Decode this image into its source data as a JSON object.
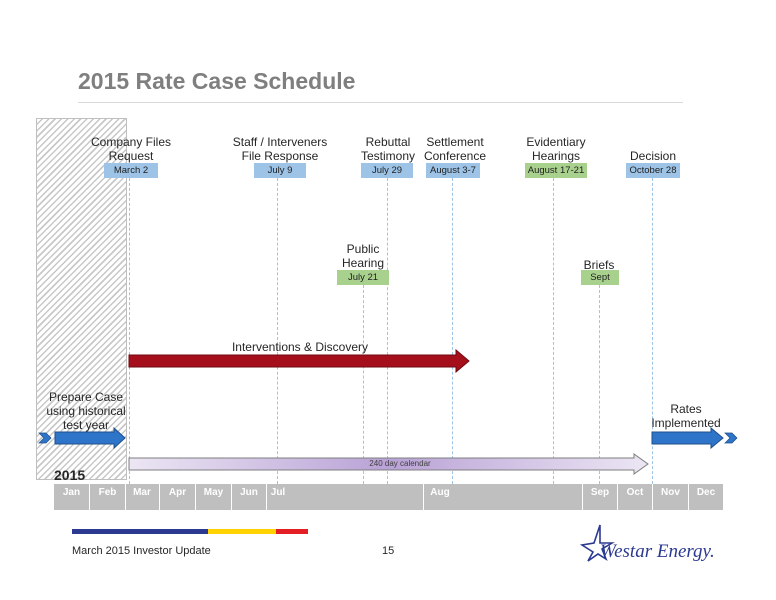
{
  "title": "2015 Rate Case Schedule",
  "milestones": [
    {
      "label": "Company Files Request",
      "line1": "Company Files",
      "line2": "Request",
      "date": "March 2"
    },
    {
      "label": "Staff / Interveners File Response",
      "line1": "Staff / Interveners",
      "line2": "File Response",
      "date": "July 9"
    },
    {
      "label": "Rebuttal Testimony",
      "line1": "Rebuttal",
      "line2": "Testimony",
      "date": "July 29"
    },
    {
      "label": "Settlement Conference",
      "line1": "Settlement",
      "line2": "Conference",
      "date": "August 3-7"
    },
    {
      "label": "Evidentiary Hearings",
      "line1": "Evidentiary",
      "line2": "Hearings",
      "date": "August 17-21"
    },
    {
      "label": "Decision",
      "line1": "Decision",
      "line2": "",
      "date": "October 28"
    }
  ],
  "public_hearing": {
    "line1": "Public",
    "line2": "Hearing",
    "date": "July 21"
  },
  "briefs": {
    "label": "Briefs",
    "date": "Sept"
  },
  "interventions": "Interventions & Discovery",
  "prepare_case": {
    "line1": "Prepare Case",
    "line2": "using historical",
    "line3": "test year"
  },
  "rates_implemented": {
    "line1": "Rates",
    "line2": "Implemented"
  },
  "calendar_label": "240 day calendar",
  "year": "2015",
  "months": [
    "Jan",
    "Feb",
    "Mar",
    "Apr",
    "May",
    "Jun",
    "Jul",
    "Aug",
    "Sep",
    "Oct",
    "Nov",
    "Dec"
  ],
  "footer": {
    "left": "March 2015 Investor Update",
    "page": "15",
    "logo": "Westar Energy."
  },
  "colors": {
    "blue_badge": "#9dc3e6",
    "green_badge": "#a9d18e",
    "red_arrow": "#a50f1b",
    "blue_arrow": "#2e75c9",
    "purple_arrow": "#c9b7e0",
    "stripe_navy": "#2b3990",
    "stripe_gold": "#ffd200",
    "stripe_red": "#e31e24"
  }
}
